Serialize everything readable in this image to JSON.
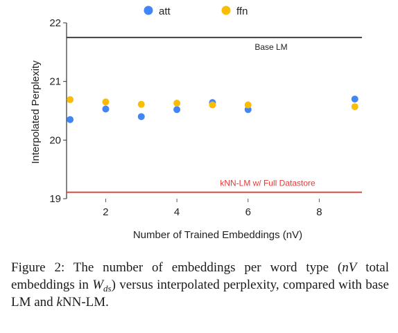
{
  "chart_data": {
    "type": "scatter",
    "xlabel": "Number of Trained Embeddings (nV)",
    "ylabel": "Interpolated Perplexity",
    "xlim": [
      0.9,
      9.2
    ],
    "ylim": [
      19,
      22
    ],
    "xticks": [
      2,
      4,
      6,
      8
    ],
    "yticks": [
      19,
      20,
      21,
      22
    ],
    "series": [
      {
        "name": "att",
        "color": "#4285F4",
        "x": [
          1,
          2,
          3,
          4,
          5,
          6,
          9
        ],
        "y": [
          20.35,
          20.53,
          20.4,
          20.52,
          20.64,
          20.52,
          20.7
        ]
      },
      {
        "name": "ffn",
        "color": "#FBBC04",
        "x": [
          1,
          2,
          3,
          4,
          5,
          6,
          9
        ],
        "y": [
          20.69,
          20.65,
          20.61,
          20.63,
          20.6,
          20.6,
          20.57
        ]
      }
    ],
    "reference_lines": [
      {
        "label": "Base LM",
        "y": 21.75,
        "color": "#333333"
      },
      {
        "label": "kNN-LM w/ Full Datastore",
        "y": 19.11,
        "color": "#E53935"
      }
    ],
    "legend_position": "top-center",
    "grid": false
  },
  "caption": {
    "prefix": "Figure 2: The number of embeddings per word type (",
    "nv": "nV",
    "middle": " total embeddings in ",
    "w": "W",
    "ds": "ds",
    "suffix": ") versus interpolated perplexity, compared with base LM and ",
    "k": "k",
    "end": "NN-LM."
  }
}
